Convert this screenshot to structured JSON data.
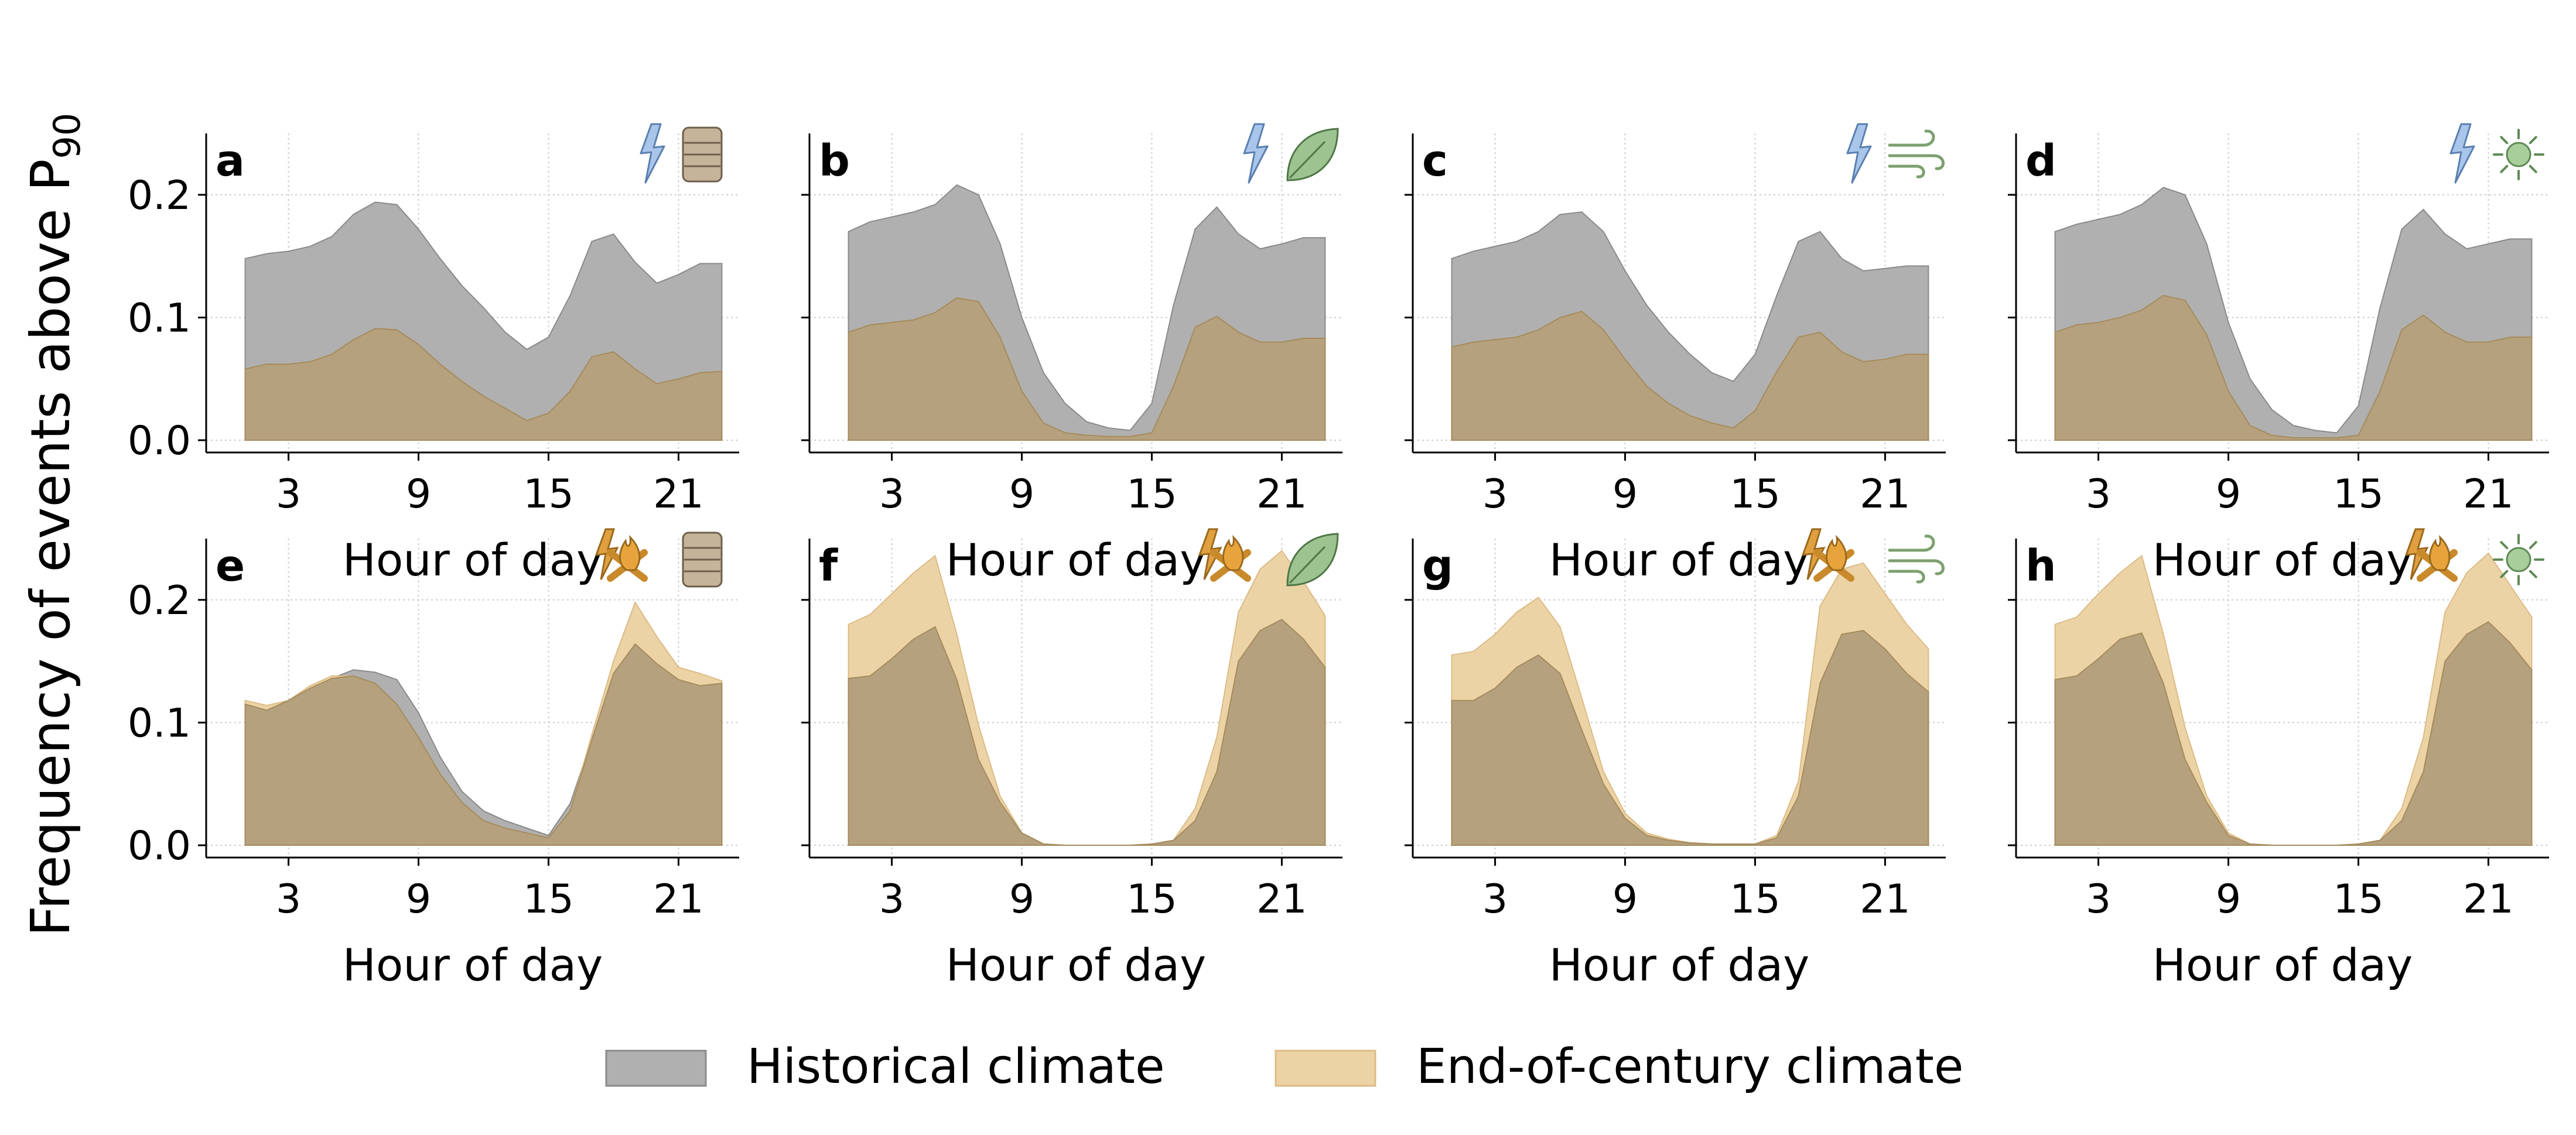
{
  "chart_data": {
    "type": "area",
    "ylabel_main": "Frequency of events above P",
    "ylabel_sub": "90",
    "xlabel": "Hour of day",
    "x": [
      1,
      2,
      3,
      4,
      5,
      6,
      7,
      8,
      9,
      10,
      11,
      12,
      13,
      14,
      15,
      16,
      17,
      18,
      19,
      20,
      21,
      22,
      23
    ],
    "xticks": [
      3,
      9,
      15,
      21
    ],
    "yticks": [
      0.0,
      0.1,
      0.2
    ],
    "ytick_labels": [
      "0.0",
      "0.1",
      "0.2"
    ],
    "xlim": [
      -0.8,
      23.8
    ],
    "ylim": [
      -0.01,
      0.25
    ],
    "grid": true,
    "legend_position": "bottom-center",
    "series_meta": [
      {
        "name": "Historical climate",
        "fill": "#b0b0b0",
        "edge": "#8a8a8a"
      },
      {
        "name": "End-of-century climate",
        "fill": "#ecd3a6",
        "edge": "#dcbb85"
      }
    ],
    "overlap_fill": "#b5a17e",
    "overlap_edge": "#a58b5c",
    "legend": [
      "Historical climate",
      "End-of-century climate"
    ],
    "panels": [
      {
        "label": "a",
        "icons": [
          "lightning-icon",
          "barrel-icon"
        ],
        "series": [
          {
            "name": "Historical climate",
            "values": [
              0.148,
              0.152,
              0.154,
              0.158,
              0.166,
              0.184,
              0.194,
              0.192,
              0.172,
              0.148,
              0.126,
              0.108,
              0.088,
              0.074,
              0.084,
              0.118,
              0.162,
              0.168,
              0.145,
              0.128,
              0.135,
              0.144,
              0.144
            ]
          },
          {
            "name": "End-of-century climate",
            "values": [
              0.058,
              0.062,
              0.062,
              0.064,
              0.07,
              0.082,
              0.091,
              0.09,
              0.078,
              0.062,
              0.048,
              0.036,
              0.026,
              0.016,
              0.022,
              0.04,
              0.068,
              0.072,
              0.058,
              0.046,
              0.05,
              0.055,
              0.056
            ]
          }
        ]
      },
      {
        "label": "b",
        "icons": [
          "lightning-icon",
          "leaf-icon"
        ],
        "series": [
          {
            "name": "Historical climate",
            "values": [
              0.17,
              0.178,
              0.182,
              0.186,
              0.192,
              0.208,
              0.2,
              0.16,
              0.1,
              0.055,
              0.03,
              0.015,
              0.01,
              0.008,
              0.03,
              0.11,
              0.172,
              0.19,
              0.168,
              0.156,
              0.16,
              0.165,
              0.165
            ]
          },
          {
            "name": "End-of-century climate",
            "values": [
              0.088,
              0.094,
              0.096,
              0.098,
              0.104,
              0.116,
              0.113,
              0.084,
              0.04,
              0.014,
              0.006,
              0.004,
              0.003,
              0.003,
              0.006,
              0.044,
              0.092,
              0.101,
              0.088,
              0.08,
              0.08,
              0.083,
              0.083
            ]
          }
        ]
      },
      {
        "label": "c",
        "icons": [
          "lightning-icon",
          "wind-icon"
        ],
        "series": [
          {
            "name": "Historical climate",
            "values": [
              0.148,
              0.154,
              0.158,
              0.162,
              0.17,
              0.184,
              0.186,
              0.17,
              0.138,
              0.11,
              0.088,
              0.07,
              0.055,
              0.048,
              0.07,
              0.118,
              0.162,
              0.17,
              0.148,
              0.138,
              0.14,
              0.142,
              0.142
            ]
          },
          {
            "name": "End-of-century climate",
            "values": [
              0.076,
              0.08,
              0.082,
              0.084,
              0.09,
              0.1,
              0.105,
              0.09,
              0.066,
              0.044,
              0.03,
              0.02,
              0.014,
              0.01,
              0.024,
              0.056,
              0.084,
              0.088,
              0.072,
              0.064,
              0.066,
              0.07,
              0.07
            ]
          }
        ]
      },
      {
        "label": "d",
        "icons": [
          "lightning-icon",
          "sun-icon"
        ],
        "series": [
          {
            "name": "Historical climate",
            "values": [
              0.17,
              0.176,
              0.18,
              0.184,
              0.192,
              0.206,
              0.2,
              0.16,
              0.096,
              0.05,
              0.025,
              0.012,
              0.008,
              0.006,
              0.028,
              0.108,
              0.172,
              0.188,
              0.168,
              0.156,
              0.16,
              0.164,
              0.164
            ]
          },
          {
            "name": "End-of-century climate",
            "values": [
              0.088,
              0.094,
              0.096,
              0.1,
              0.106,
              0.118,
              0.114,
              0.086,
              0.04,
              0.012,
              0.004,
              0.002,
              0.002,
              0.002,
              0.004,
              0.04,
              0.09,
              0.102,
              0.088,
              0.08,
              0.08,
              0.084,
              0.084
            ]
          }
        ]
      },
      {
        "label": "e",
        "icons": [
          "lightning-fire-icon",
          "barrel-icon"
        ],
        "series": [
          {
            "name": "Historical climate",
            "values": [
              0.115,
              0.11,
              0.118,
              0.128,
              0.136,
              0.143,
              0.141,
              0.135,
              0.108,
              0.072,
              0.044,
              0.028,
              0.02,
              0.014,
              0.008,
              0.034,
              0.086,
              0.14,
              0.164,
              0.148,
              0.135,
              0.13,
              0.132
            ]
          },
          {
            "name": "End-of-century climate",
            "values": [
              0.118,
              0.114,
              0.118,
              0.13,
              0.138,
              0.138,
              0.132,
              0.115,
              0.088,
              0.058,
              0.035,
              0.02,
              0.014,
              0.01,
              0.006,
              0.028,
              0.09,
              0.15,
              0.198,
              0.17,
              0.145,
              0.14,
              0.134
            ]
          }
        ]
      },
      {
        "label": "f",
        "icons": [
          "lightning-fire-icon",
          "leaf-icon"
        ],
        "series": [
          {
            "name": "Historical climate",
            "values": [
              0.136,
              0.138,
              0.152,
              0.168,
              0.178,
              0.135,
              0.07,
              0.035,
              0.01,
              0.001,
              0.0,
              0.0,
              0.0,
              0.0,
              0.001,
              0.004,
              0.02,
              0.06,
              0.15,
              0.175,
              0.184,
              0.168,
              0.145
            ]
          },
          {
            "name": "End-of-century climate",
            "values": [
              0.18,
              0.188,
              0.205,
              0.222,
              0.236,
              0.172,
              0.098,
              0.04,
              0.01,
              0.001,
              0.0,
              0.0,
              0.0,
              0.0,
              0.001,
              0.004,
              0.03,
              0.088,
              0.19,
              0.225,
              0.24,
              0.215,
              0.187
            ]
          }
        ]
      },
      {
        "label": "g",
        "icons": [
          "lightning-fire-icon",
          "wind-icon"
        ],
        "series": [
          {
            "name": "Historical climate",
            "values": [
              0.118,
              0.118,
              0.128,
              0.145,
              0.155,
              0.14,
              0.094,
              0.05,
              0.022,
              0.008,
              0.004,
              0.002,
              0.001,
              0.001,
              0.001,
              0.006,
              0.04,
              0.132,
              0.172,
              0.175,
              0.16,
              0.14,
              0.125
            ]
          },
          {
            "name": "End-of-century climate",
            "values": [
              0.155,
              0.158,
              0.172,
              0.19,
              0.202,
              0.178,
              0.12,
              0.06,
              0.026,
              0.01,
              0.005,
              0.002,
              0.001,
              0.001,
              0.001,
              0.008,
              0.052,
              0.195,
              0.225,
              0.23,
              0.205,
              0.18,
              0.16
            ]
          }
        ]
      },
      {
        "label": "h",
        "icons": [
          "lightning-fire-icon",
          "sun-icon"
        ],
        "series": [
          {
            "name": "Historical climate",
            "values": [
              0.135,
              0.138,
              0.152,
              0.168,
              0.173,
              0.132,
              0.07,
              0.035,
              0.008,
              0.001,
              0.0,
              0.0,
              0.0,
              0.0,
              0.001,
              0.004,
              0.02,
              0.06,
              0.15,
              0.172,
              0.182,
              0.165,
              0.143
            ]
          },
          {
            "name": "End-of-century climate",
            "values": [
              0.18,
              0.186,
              0.205,
              0.222,
              0.236,
              0.172,
              0.096,
              0.04,
              0.01,
              0.001,
              0.0,
              0.0,
              0.0,
              0.0,
              0.001,
              0.004,
              0.03,
              0.088,
              0.19,
              0.222,
              0.238,
              0.212,
              0.186
            ]
          }
        ]
      }
    ]
  }
}
